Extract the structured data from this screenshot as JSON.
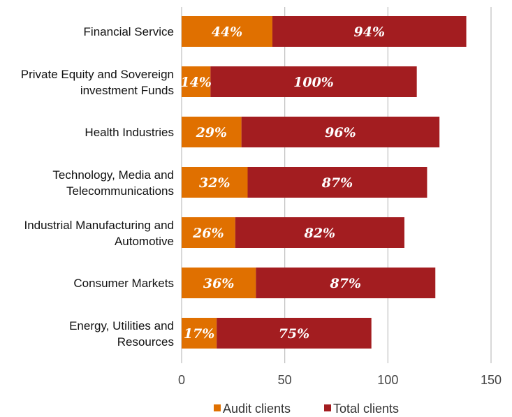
{
  "chart_data": {
    "type": "bar",
    "orientation": "horizontal",
    "stacked": true,
    "categories": [
      [
        "Financial Service"
      ],
      [
        "Private Equity and Sovereign",
        "investment Funds"
      ],
      [
        "Health Industries"
      ],
      [
        "Technology, Media and",
        "Telecommunications"
      ],
      [
        "Industrial Manufacturing and",
        "Automotive"
      ],
      [
        "Consumer Markets"
      ],
      [
        "Energy, Utilities and",
        "Resources"
      ]
    ],
    "series": [
      {
        "name": "Audit clients",
        "color": "#e07000",
        "values": [
          44,
          14,
          29,
          32,
          26,
          36,
          17
        ],
        "labels": [
          "44%",
          "14%",
          "29%",
          "32%",
          "26%",
          "36%",
          "17%"
        ]
      },
      {
        "name": "Total clients",
        "color": "#a31d20",
        "values": [
          94,
          100,
          96,
          87,
          82,
          87,
          75
        ],
        "labels": [
          "94%",
          "100%",
          "96%",
          "87%",
          "82%",
          "87%",
          "75%"
        ]
      }
    ],
    "xlim": [
      0,
      150
    ],
    "xticks": [
      0,
      50,
      100,
      150
    ],
    "xtick_labels": [
      "0",
      "50",
      "100",
      "150"
    ],
    "grid": true,
    "legend_position": "bottom"
  }
}
